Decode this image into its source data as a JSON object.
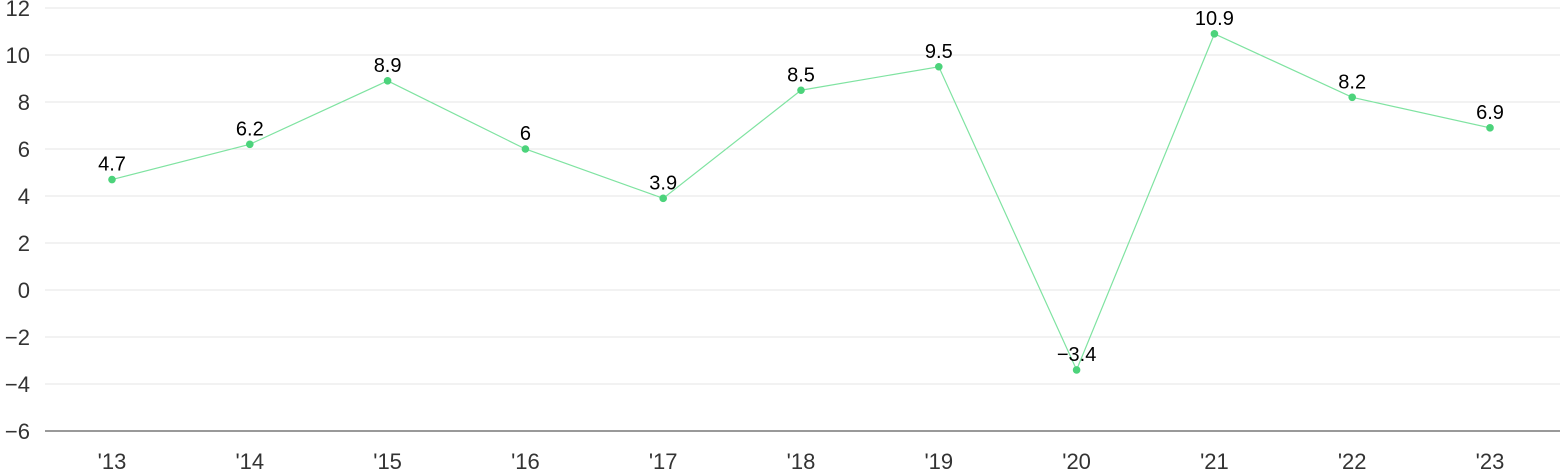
{
  "chart_data": {
    "type": "line",
    "categories": [
      "'13",
      "'14",
      "'15",
      "'16",
      "'17",
      "'18",
      "'19",
      "'20",
      "'21",
      "'22",
      "'23"
    ],
    "series": [
      {
        "values": [
          4.7,
          6.2,
          8.9,
          6,
          3.9,
          8.5,
          9.5,
          -3.4,
          10.9,
          8.2,
          6.9
        ]
      }
    ],
    "data_labels": [
      "4.7",
      "6.2",
      "8.9",
      "6",
      "3.9",
      "8.5",
      "9.5",
      "−3.4",
      "10.9",
      "8.2",
      "6.9"
    ],
    "y_ticks": [
      "12",
      "10",
      "8",
      "6",
      "4",
      "2",
      "0",
      "−2",
      "−4",
      "−6"
    ],
    "y_tick_values": [
      12,
      10,
      8,
      6,
      4,
      2,
      0,
      -2,
      -4,
      -6
    ],
    "ylim": [
      -6,
      12
    ],
    "grid": true,
    "legend": "none",
    "title": "",
    "xlabel": "",
    "ylabel": "",
    "colors": {
      "line": "#7fe3a1",
      "marker": "#4cd37b",
      "grid": "#e6e6e6",
      "axis": "#333333"
    }
  }
}
